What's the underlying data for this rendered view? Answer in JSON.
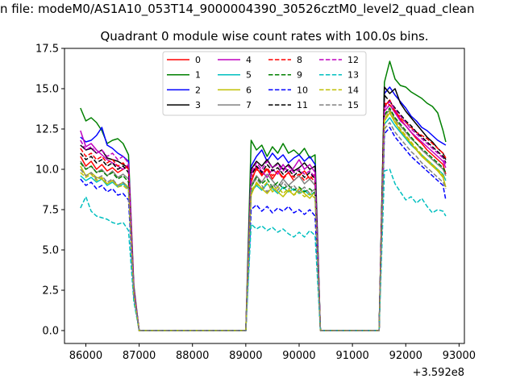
{
  "figure": {
    "suptitle": "n file: modeM0/AS1A10_053T14_9000004390_30526cztM0_level2_quad_clean",
    "title": "Quadrant 0 module wise count rates with 100.0s bins.",
    "x_offset_label": "+3.592e8"
  },
  "chart_data": {
    "type": "line",
    "title": "Quadrant 0 module wise count rates with 100.0s bins.",
    "xlabel": "",
    "ylabel": "",
    "x_offset": 359200000,
    "xlim": [
      85600,
      93100
    ],
    "ylim": [
      -0.8,
      17.5
    ],
    "xticks": [
      86000,
      87000,
      88000,
      89000,
      90000,
      91000,
      92000,
      93000
    ],
    "yticks": [
      0.0,
      2.5,
      5.0,
      7.5,
      10.0,
      12.5,
      15.0,
      17.5
    ],
    "xtick_labels": [
      "86000",
      "87000",
      "88000",
      "89000",
      "90000",
      "91000",
      "92000",
      "93000"
    ],
    "ytick_labels": [
      "0.0",
      "2.5",
      "5.0",
      "7.5",
      "10.0",
      "12.5",
      "15.0",
      "17.5"
    ],
    "grid": false,
    "legend": {
      "placement": "top-center",
      "ncol": 4
    },
    "x": [
      85900,
      86000,
      86100,
      86200,
      86300,
      86400,
      86500,
      86600,
      86700,
      86800,
      86900,
      87000,
      87100,
      89000,
      89100,
      89200,
      89300,
      89400,
      89500,
      89600,
      89700,
      89800,
      89900,
      90000,
      90100,
      90200,
      90300,
      90400,
      90500,
      91500,
      91600,
      91700,
      91800,
      91900,
      92000,
      92100,
      92200,
      92300,
      92400,
      92500,
      92600,
      92700,
      92750
    ],
    "series": [
      {
        "name": "0",
        "color": "#ff0000",
        "dash": "solid",
        "values": [
          10.8,
          10.2,
          10.5,
          10.0,
          10.3,
          9.9,
          10.1,
          9.8,
          10.0,
          10.2,
          2.5,
          0,
          0,
          0,
          9.2,
          10.1,
          9.6,
          10.0,
          9.4,
          9.9,
          9.5,
          9.8,
          9.3,
          9.6,
          9.9,
          9.4,
          9.7,
          0,
          0,
          0,
          13.9,
          14.3,
          13.6,
          13.1,
          12.7,
          12.3,
          11.9,
          11.6,
          11.2,
          10.9,
          10.6,
          10.3,
          9.7
        ]
      },
      {
        "name": "1",
        "color": "#008000",
        "dash": "solid",
        "values": [
          13.8,
          13.0,
          13.2,
          12.9,
          12.4,
          11.6,
          11.8,
          11.9,
          11.6,
          10.9,
          2.8,
          0,
          0,
          0,
          11.8,
          11.2,
          11.5,
          10.8,
          11.4,
          11.0,
          11.6,
          11.0,
          11.2,
          10.9,
          11.3,
          10.7,
          10.9,
          0,
          0,
          0,
          15.4,
          16.7,
          15.6,
          15.2,
          15.1,
          14.8,
          14.6,
          14.4,
          14.1,
          13.9,
          13.5,
          12.4,
          11.7
        ]
      },
      {
        "name": "2",
        "color": "#0000ff",
        "dash": "solid",
        "values": [
          12.0,
          11.7,
          11.8,
          12.1,
          12.6,
          11.5,
          11.3,
          11.0,
          10.8,
          10.5,
          2.6,
          0,
          0,
          0,
          10.2,
          10.8,
          11.2,
          10.5,
          11.0,
          10.6,
          10.9,
          10.4,
          10.7,
          10.9,
          10.5,
          10.8,
          10.3,
          0,
          0,
          0,
          14.7,
          15.1,
          14.6,
          14.2,
          13.8,
          13.3,
          13.0,
          12.6,
          12.4,
          12.1,
          11.8,
          11.6,
          11.5
        ]
      },
      {
        "name": "3",
        "color": "#000000",
        "dash": "solid",
        "values": [
          11.5,
          11.2,
          11.3,
          11.0,
          11.2,
          10.7,
          10.6,
          10.5,
          10.3,
          10.1,
          2.5,
          0,
          0,
          0,
          10.0,
          10.5,
          10.2,
          10.6,
          10.1,
          10.4,
          10.0,
          10.3,
          9.9,
          10.1,
          10.4,
          10.0,
          10.2,
          0,
          0,
          0,
          15.1,
          14.7,
          15.0,
          14.1,
          13.6,
          13.2,
          12.8,
          12.4,
          12.0,
          11.7,
          11.3,
          11.0,
          10.6
        ]
      },
      {
        "name": "4",
        "color": "#bf00bf",
        "dash": "solid",
        "values": [
          12.4,
          11.4,
          11.6,
          11.2,
          10.9,
          10.6,
          10.4,
          10.2,
          10.0,
          10.3,
          2.6,
          0,
          0,
          0,
          9.7,
          10.2,
          9.9,
          9.5,
          10.0,
          9.7,
          10.3,
          9.8,
          10.1,
          10.6,
          10.0,
          10.3,
          9.8,
          0,
          0,
          0,
          13.6,
          14.0,
          13.5,
          13.0,
          12.7,
          12.3,
          12.0,
          11.7,
          11.4,
          11.1,
          10.8,
          10.5,
          10.1
        ]
      },
      {
        "name": "5",
        "color": "#00bfbf",
        "dash": "solid",
        "values": [
          9.6,
          9.3,
          9.5,
          9.2,
          9.4,
          9.0,
          9.2,
          8.9,
          9.1,
          8.8,
          2.2,
          0,
          0,
          0,
          8.6,
          9.0,
          8.7,
          9.1,
          8.8,
          8.5,
          8.9,
          8.6,
          8.8,
          8.5,
          8.7,
          8.4,
          8.6,
          0,
          0,
          0,
          12.8,
          13.2,
          12.7,
          12.3,
          11.9,
          11.5,
          11.2,
          10.9,
          10.6,
          10.3,
          10.0,
          9.7,
          9.3
        ]
      },
      {
        "name": "6",
        "color": "#bfbf00",
        "dash": "solid",
        "values": [
          10.2,
          9.6,
          9.8,
          9.5,
          9.4,
          9.1,
          9.3,
          9.0,
          9.2,
          8.9,
          2.3,
          0,
          0,
          0,
          8.4,
          9.2,
          8.8,
          8.5,
          8.9,
          8.6,
          8.3,
          8.7,
          8.4,
          8.8,
          8.5,
          8.2,
          8.6,
          0,
          0,
          0,
          13.0,
          13.5,
          12.9,
          12.4,
          12.0,
          11.6,
          11.2,
          10.8,
          10.5,
          10.2,
          9.9,
          9.5,
          8.9
        ]
      },
      {
        "name": "7",
        "color": "#808080",
        "dash": "solid",
        "values": [
          10.5,
          10.0,
          10.2,
          9.8,
          10.0,
          9.6,
          9.9,
          9.5,
          9.7,
          9.4,
          2.4,
          0,
          0,
          0,
          9.0,
          9.6,
          9.2,
          9.7,
          9.3,
          8.9,
          9.4,
          9.0,
          9.3,
          9.6,
          9.1,
          9.4,
          9.0,
          0,
          0,
          0,
          13.3,
          13.7,
          13.1,
          12.7,
          12.3,
          11.9,
          11.6,
          11.2,
          10.9,
          10.6,
          10.3,
          10.0,
          9.6
        ]
      },
      {
        "name": "8",
        "color": "#ff0000",
        "dash": "dashed",
        "values": [
          11.3,
          10.8,
          11.0,
          10.6,
          10.8,
          10.4,
          10.6,
          10.2,
          10.4,
          10.0,
          2.5,
          0,
          0,
          0,
          9.4,
          10.0,
          9.7,
          10.1,
          9.6,
          9.9,
          9.4,
          9.8,
          9.5,
          9.7,
          9.3,
          9.6,
          9.2,
          0,
          0,
          0,
          14.1,
          14.0,
          13.6,
          13.2,
          12.9,
          12.6,
          12.3,
          12.1,
          11.9,
          11.6,
          11.3,
          11.0,
          10.7
        ]
      },
      {
        "name": "9",
        "color": "#008000",
        "dash": "dashed",
        "values": [
          10.4,
          10.0,
          10.2,
          9.8,
          9.9,
          9.6,
          9.8,
          9.4,
          9.6,
          9.2,
          2.4,
          0,
          0,
          0,
          8.9,
          9.5,
          9.1,
          9.4,
          8.9,
          9.2,
          8.8,
          9.0,
          8.7,
          8.9,
          8.6,
          8.8,
          8.5,
          0,
          0,
          0,
          13.4,
          13.8,
          13.2,
          12.8,
          12.4,
          12.0,
          11.6,
          11.3,
          11.0,
          10.7,
          10.4,
          10.1,
          9.8
        ]
      },
      {
        "name": "10",
        "color": "#0000ff",
        "dash": "dashed",
        "values": [
          9.4,
          9.0,
          9.2,
          8.8,
          9.0,
          8.6,
          8.8,
          8.4,
          8.5,
          8.1,
          2.1,
          0,
          0,
          0,
          7.5,
          7.8,
          7.4,
          7.7,
          7.3,
          7.6,
          7.4,
          7.7,
          7.3,
          7.5,
          7.2,
          7.5,
          7.1,
          0,
          0,
          0,
          12.2,
          12.6,
          12.0,
          11.6,
          11.2,
          10.8,
          10.5,
          10.2,
          9.9,
          9.6,
          9.3,
          9.0,
          8.1
        ]
      },
      {
        "name": "11",
        "color": "#000000",
        "dash": "dashed",
        "values": [
          11.0,
          10.6,
          10.8,
          10.4,
          10.6,
          10.2,
          10.4,
          10.0,
          10.2,
          9.8,
          2.5,
          0,
          0,
          0,
          9.6,
          10.2,
          9.8,
          10.3,
          9.9,
          10.1,
          9.7,
          10.0,
          9.6,
          9.9,
          9.5,
          9.8,
          9.4,
          0,
          0,
          0,
          14.6,
          14.2,
          13.8,
          13.4,
          13.0,
          12.7,
          12.3,
          12.0,
          11.7,
          11.4,
          11.1,
          10.8,
          10.4
        ]
      },
      {
        "name": "12",
        "color": "#bf00bf",
        "dash": "dashed",
        "values": [
          11.8,
          11.2,
          11.4,
          11.0,
          11.2,
          10.8,
          11.0,
          10.6,
          10.8,
          10.4,
          2.6,
          0,
          0,
          0,
          9.8,
          10.4,
          10.0,
          10.5,
          10.1,
          10.3,
          9.9,
          10.2,
          9.8,
          10.0,
          9.7,
          9.9,
          9.5,
          0,
          0,
          0,
          13.8,
          14.2,
          13.7,
          13.3,
          12.9,
          12.5,
          12.2,
          11.9,
          11.6,
          11.3,
          11.0,
          10.7,
          10.3
        ]
      },
      {
        "name": "13",
        "color": "#00bfbf",
        "dash": "dashed",
        "values": [
          7.6,
          8.3,
          7.4,
          7.1,
          7.0,
          6.9,
          6.7,
          6.6,
          6.7,
          6.2,
          1.8,
          0,
          0,
          0,
          6.6,
          6.3,
          6.5,
          6.2,
          6.4,
          6.1,
          6.3,
          6.0,
          5.8,
          6.1,
          5.8,
          6.2,
          5.9,
          0,
          0,
          0,
          9.9,
          10.0,
          9.1,
          8.6,
          8.1,
          8.3,
          7.9,
          8.2,
          7.7,
          7.3,
          7.5,
          7.4,
          7.1
        ]
      },
      {
        "name": "14",
        "color": "#bfbf00",
        "dash": "dashed",
        "values": [
          9.8,
          9.5,
          9.7,
          9.3,
          9.5,
          9.1,
          9.3,
          8.9,
          9.0,
          8.7,
          2.2,
          0,
          0,
          0,
          8.7,
          9.1,
          8.8,
          9.2,
          8.6,
          8.9,
          8.5,
          8.8,
          8.4,
          8.6,
          8.3,
          8.5,
          8.2,
          0,
          0,
          0,
          13.1,
          13.6,
          13.0,
          12.5,
          12.1,
          11.7,
          11.3,
          10.9,
          10.6,
          10.3,
          10.0,
          9.6,
          9.4
        ]
      },
      {
        "name": "15",
        "color": "#808080",
        "dash": "dashed",
        "values": [
          10.0,
          9.6,
          9.8,
          9.4,
          9.6,
          9.2,
          9.4,
          9.0,
          9.2,
          8.8,
          2.3,
          0,
          0,
          0,
          9.0,
          9.4,
          9.0,
          8.6,
          9.1,
          8.7,
          9.2,
          8.8,
          9.0,
          8.6,
          8.9,
          8.5,
          8.8,
          0,
          0,
          0,
          12.5,
          12.9,
          12.3,
          11.9,
          11.5,
          11.1,
          10.8,
          10.4,
          10.1,
          9.8,
          9.5,
          9.2,
          8.8
        ]
      }
    ]
  }
}
